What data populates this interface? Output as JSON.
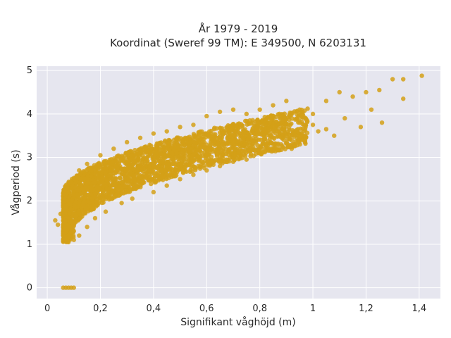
{
  "chart_data": {
    "type": "scatter",
    "title": "År 1979 - 2019",
    "subtitle": "Koordinat (Sweref 99 TM): E 349500, N 6203131",
    "xlabel": "Signifikant våghöjd (m)",
    "ylabel": "Vågperiod (s)",
    "xlim": [
      -0.04,
      1.48
    ],
    "ylim": [
      -0.25,
      5.1
    ],
    "x_ticks": [
      "0",
      "0,2",
      "0,4",
      "0,6",
      "0,8",
      "1",
      "1,2",
      "1,4"
    ],
    "y_ticks": [
      "0",
      "1",
      "2",
      "3",
      "4",
      "5"
    ],
    "grid": true,
    "marker_color": "#d4a017",
    "plot_background": "#e6e6ef",
    "series": [
      {
        "values": [
          [
            0.06,
            0.0
          ],
          [
            0.07,
            0.0
          ],
          [
            0.08,
            0.0
          ],
          [
            0.09,
            0.0
          ],
          [
            0.1,
            0.0
          ],
          [
            0.03,
            1.55
          ],
          [
            0.04,
            1.45
          ],
          [
            0.05,
            1.7
          ],
          [
            0.06,
            1.25
          ],
          [
            0.07,
            1.1
          ],
          [
            0.08,
            1.05
          ],
          [
            0.08,
            2.2
          ],
          [
            0.1,
            1.1
          ],
          [
            0.1,
            2.5
          ],
          [
            0.12,
            1.2
          ],
          [
            0.12,
            2.7
          ],
          [
            0.15,
            1.4
          ],
          [
            0.15,
            2.85
          ],
          [
            0.18,
            1.6
          ],
          [
            0.2,
            3.05
          ],
          [
            0.22,
            1.75
          ],
          [
            0.25,
            3.2
          ],
          [
            0.28,
            1.95
          ],
          [
            0.3,
            3.35
          ],
          [
            0.32,
            2.05
          ],
          [
            0.35,
            3.45
          ],
          [
            0.4,
            2.2
          ],
          [
            0.4,
            3.55
          ],
          [
            0.45,
            2.35
          ],
          [
            0.45,
            3.6
          ],
          [
            0.5,
            2.5
          ],
          [
            0.5,
            3.7
          ],
          [
            0.55,
            2.6
          ],
          [
            0.55,
            3.75
          ],
          [
            0.6,
            2.7
          ],
          [
            0.6,
            3.95
          ],
          [
            0.65,
            2.8
          ],
          [
            0.65,
            4.05
          ],
          [
            0.7,
            2.9
          ],
          [
            0.7,
            4.1
          ],
          [
            0.75,
            2.95
          ],
          [
            0.75,
            4.0
          ],
          [
            0.8,
            3.1
          ],
          [
            0.8,
            4.1
          ],
          [
            0.85,
            3.15
          ],
          [
            0.85,
            4.2
          ],
          [
            0.88,
            3.3
          ],
          [
            0.9,
            4.3
          ],
          [
            0.92,
            3.2
          ],
          [
            0.95,
            4.1
          ],
          [
            0.97,
            3.4
          ],
          [
            1.0,
            4.0
          ],
          [
            1.02,
            3.6
          ],
          [
            1.05,
            4.3
          ],
          [
            1.08,
            3.5
          ],
          [
            1.1,
            4.5
          ],
          [
            1.12,
            3.9
          ],
          [
            1.15,
            4.4
          ],
          [
            1.18,
            3.7
          ],
          [
            1.2,
            4.5
          ],
          [
            1.22,
            4.1
          ],
          [
            1.25,
            4.55
          ],
          [
            1.26,
            3.8
          ],
          [
            1.3,
            4.8
          ],
          [
            1.34,
            4.35
          ],
          [
            1.34,
            4.8
          ],
          [
            1.41,
            4.88
          ],
          [
            1.0,
            3.75
          ],
          [
            0.9,
            3.5
          ],
          [
            1.05,
            3.65
          ]
        ]
      }
    ]
  }
}
